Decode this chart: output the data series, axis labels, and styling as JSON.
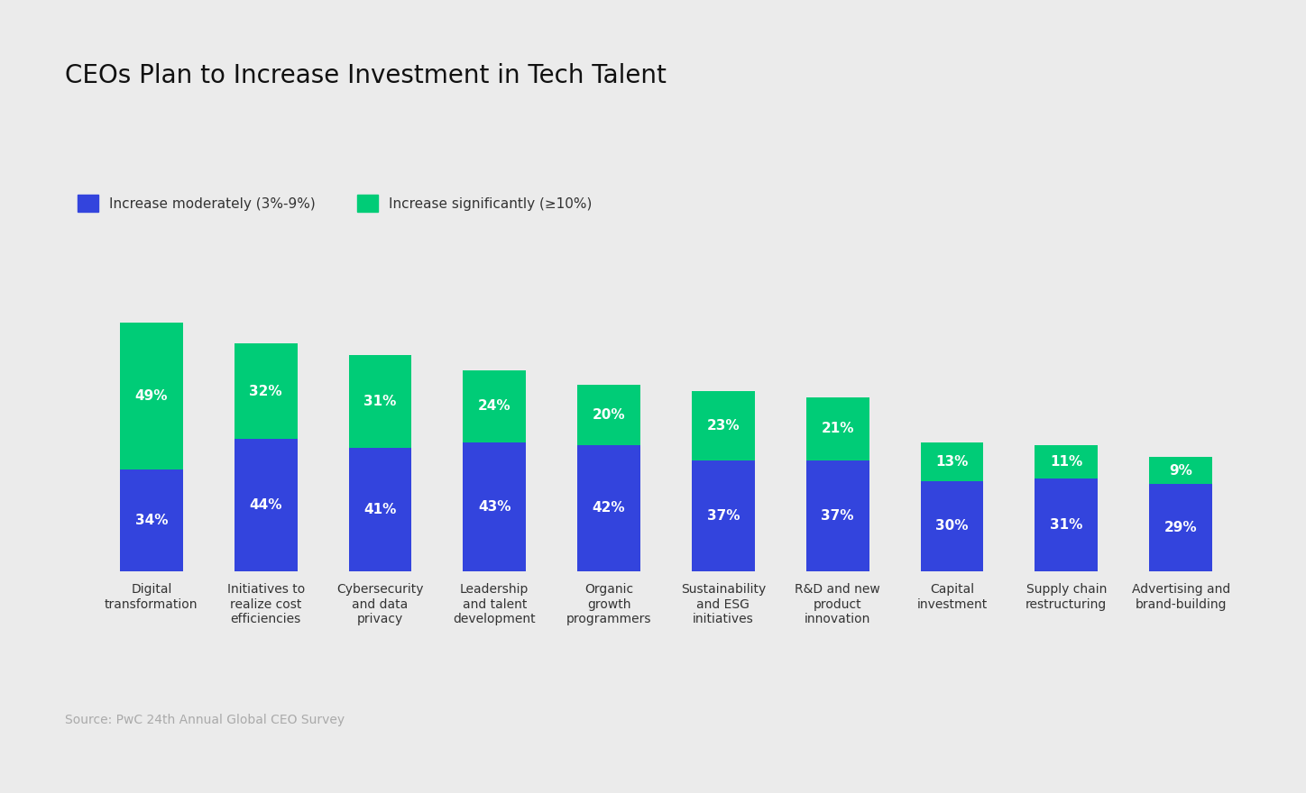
{
  "title": "CEOs Plan to Increase Investment in Tech Talent",
  "categories": [
    "Digital\ntransformation",
    "Initiatives to\nrealize cost\nefficiencies",
    "Cybersecurity\nand data\nprivacy",
    "Leadership\nand talent\ndevelopment",
    "Organic\ngrowth\nprogrammers",
    "Sustainability\nand ESG\ninitiatives",
    "R&D and new\nproduct\ninnovation",
    "Capital\ninvestment",
    "Supply chain\nrestructuring",
    "Advertising and\nbrand-building"
  ],
  "moderate_values": [
    34,
    44,
    41,
    43,
    42,
    37,
    37,
    30,
    31,
    29
  ],
  "significant_values": [
    49,
    32,
    31,
    24,
    20,
    23,
    21,
    13,
    11,
    9
  ],
  "moderate_color": "#3344dd",
  "significant_color": "#00cc77",
  "moderate_label": "Increase moderately (3%-9%)",
  "significant_label": "Increase significantly (≥10%)",
  "source_text": "Source: PwC 24th Annual Global CEO Survey",
  "background_color": "#ebebeb",
  "bar_width": 0.55,
  "ylim": [
    0,
    90
  ],
  "title_fontsize": 20,
  "label_fontsize": 11,
  "tick_fontsize": 10,
  "source_fontsize": 10,
  "legend_fontsize": 11
}
